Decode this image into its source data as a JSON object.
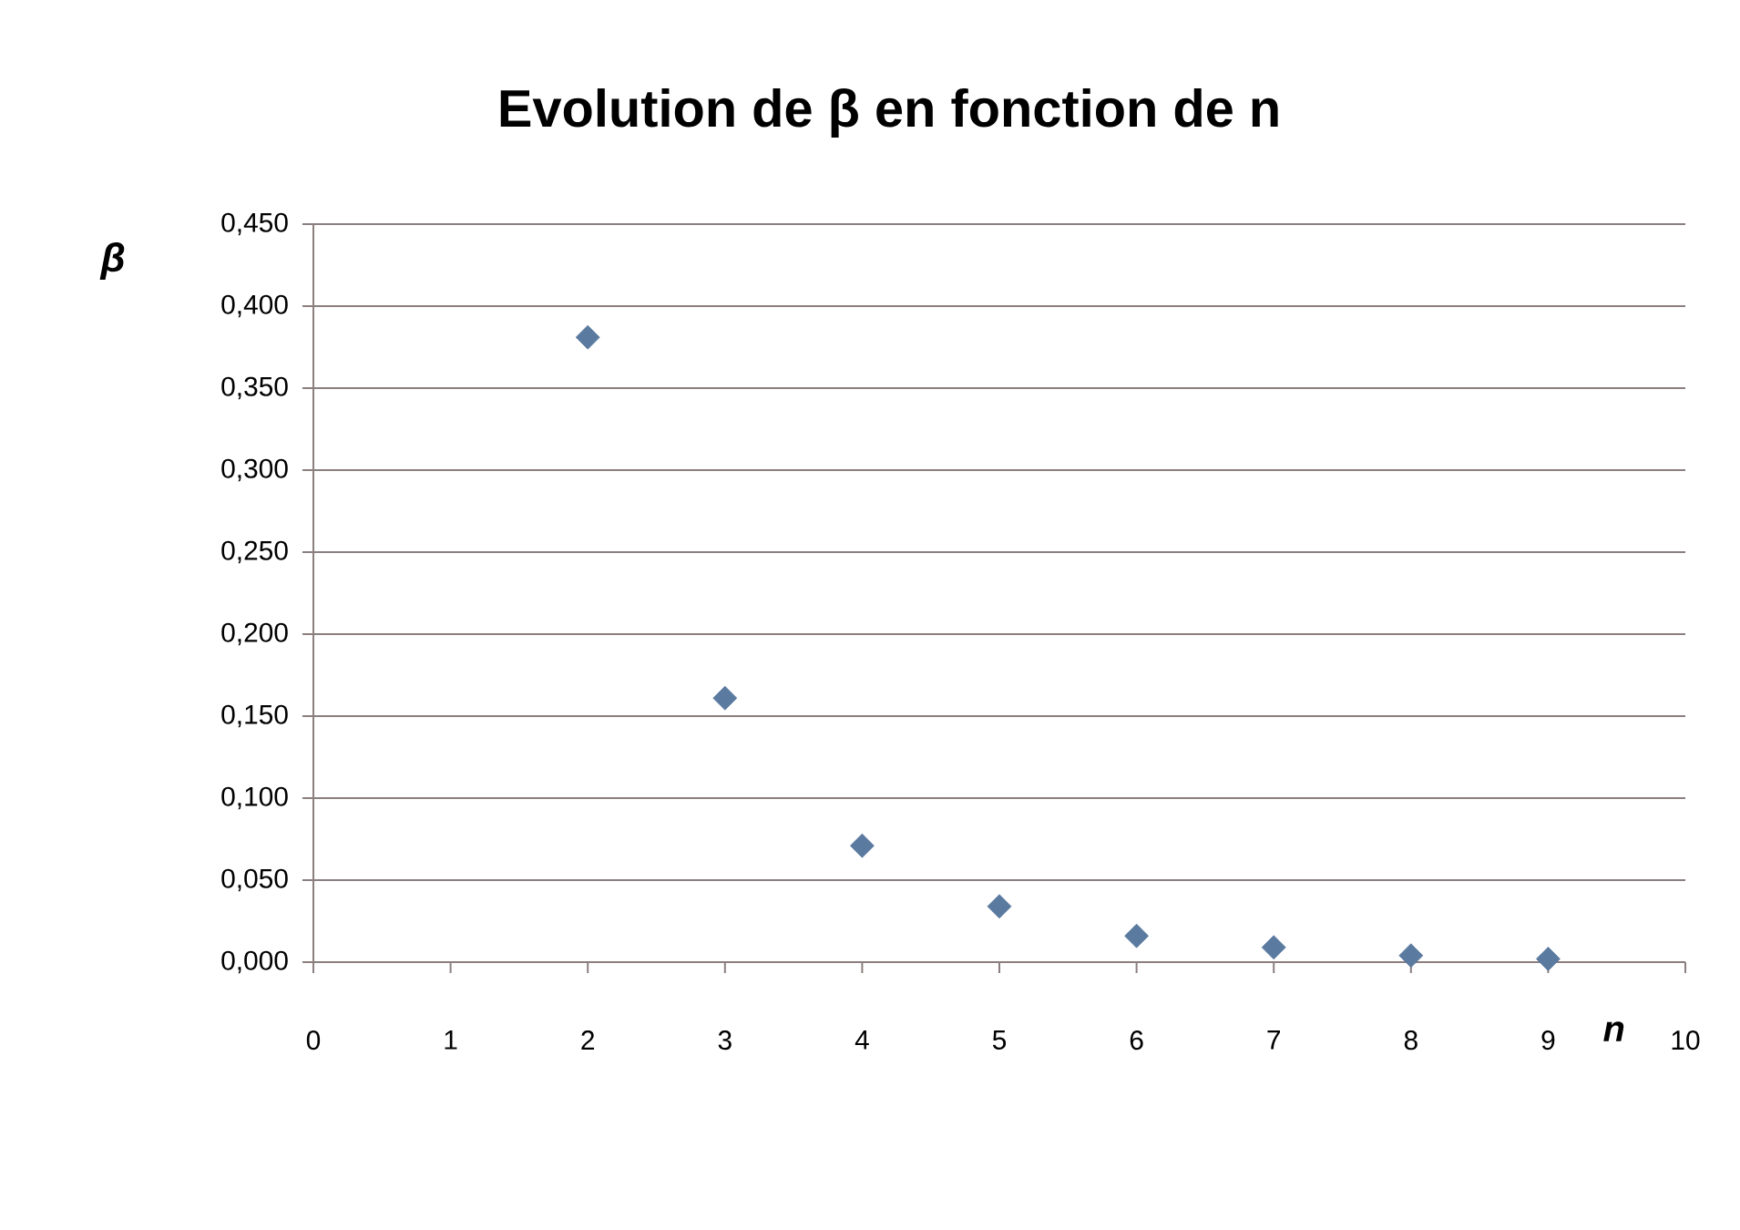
{
  "chart_data": {
    "type": "scatter",
    "title": "Evolution de β en fonction de n",
    "xlabel": "n",
    "ylabel": "β",
    "x": [
      2,
      3,
      4,
      5,
      6,
      7,
      8,
      9
    ],
    "series": [
      {
        "color": "#5a7aa0",
        "values": [
          0.381,
          0.161,
          0.071,
          0.034,
          0.016,
          0.009,
          0.004,
          0.002
        ]
      }
    ],
    "xlim": [
      0,
      10
    ],
    "xticks": [
      0,
      1,
      2,
      3,
      4,
      5,
      6,
      7,
      8,
      9,
      10
    ],
    "ylim": [
      0,
      0.45
    ],
    "yticks": [
      {
        "value": 0,
        "label": "0,000"
      },
      {
        "value": 0.05,
        "label": "0,050"
      },
      {
        "value": 0.1,
        "label": "0,100"
      },
      {
        "value": 0.15,
        "label": "0,150"
      },
      {
        "value": 0.2,
        "label": "0,200"
      },
      {
        "value": 0.25,
        "label": "0,250"
      },
      {
        "value": 0.3,
        "label": "0,300"
      },
      {
        "value": 0.35,
        "label": "0,350"
      },
      {
        "value": 0.4,
        "label": "0,400"
      },
      {
        "value": 0.45,
        "label": "0,450"
      }
    ],
    "grid": "y",
    "marker": "diamond"
  }
}
